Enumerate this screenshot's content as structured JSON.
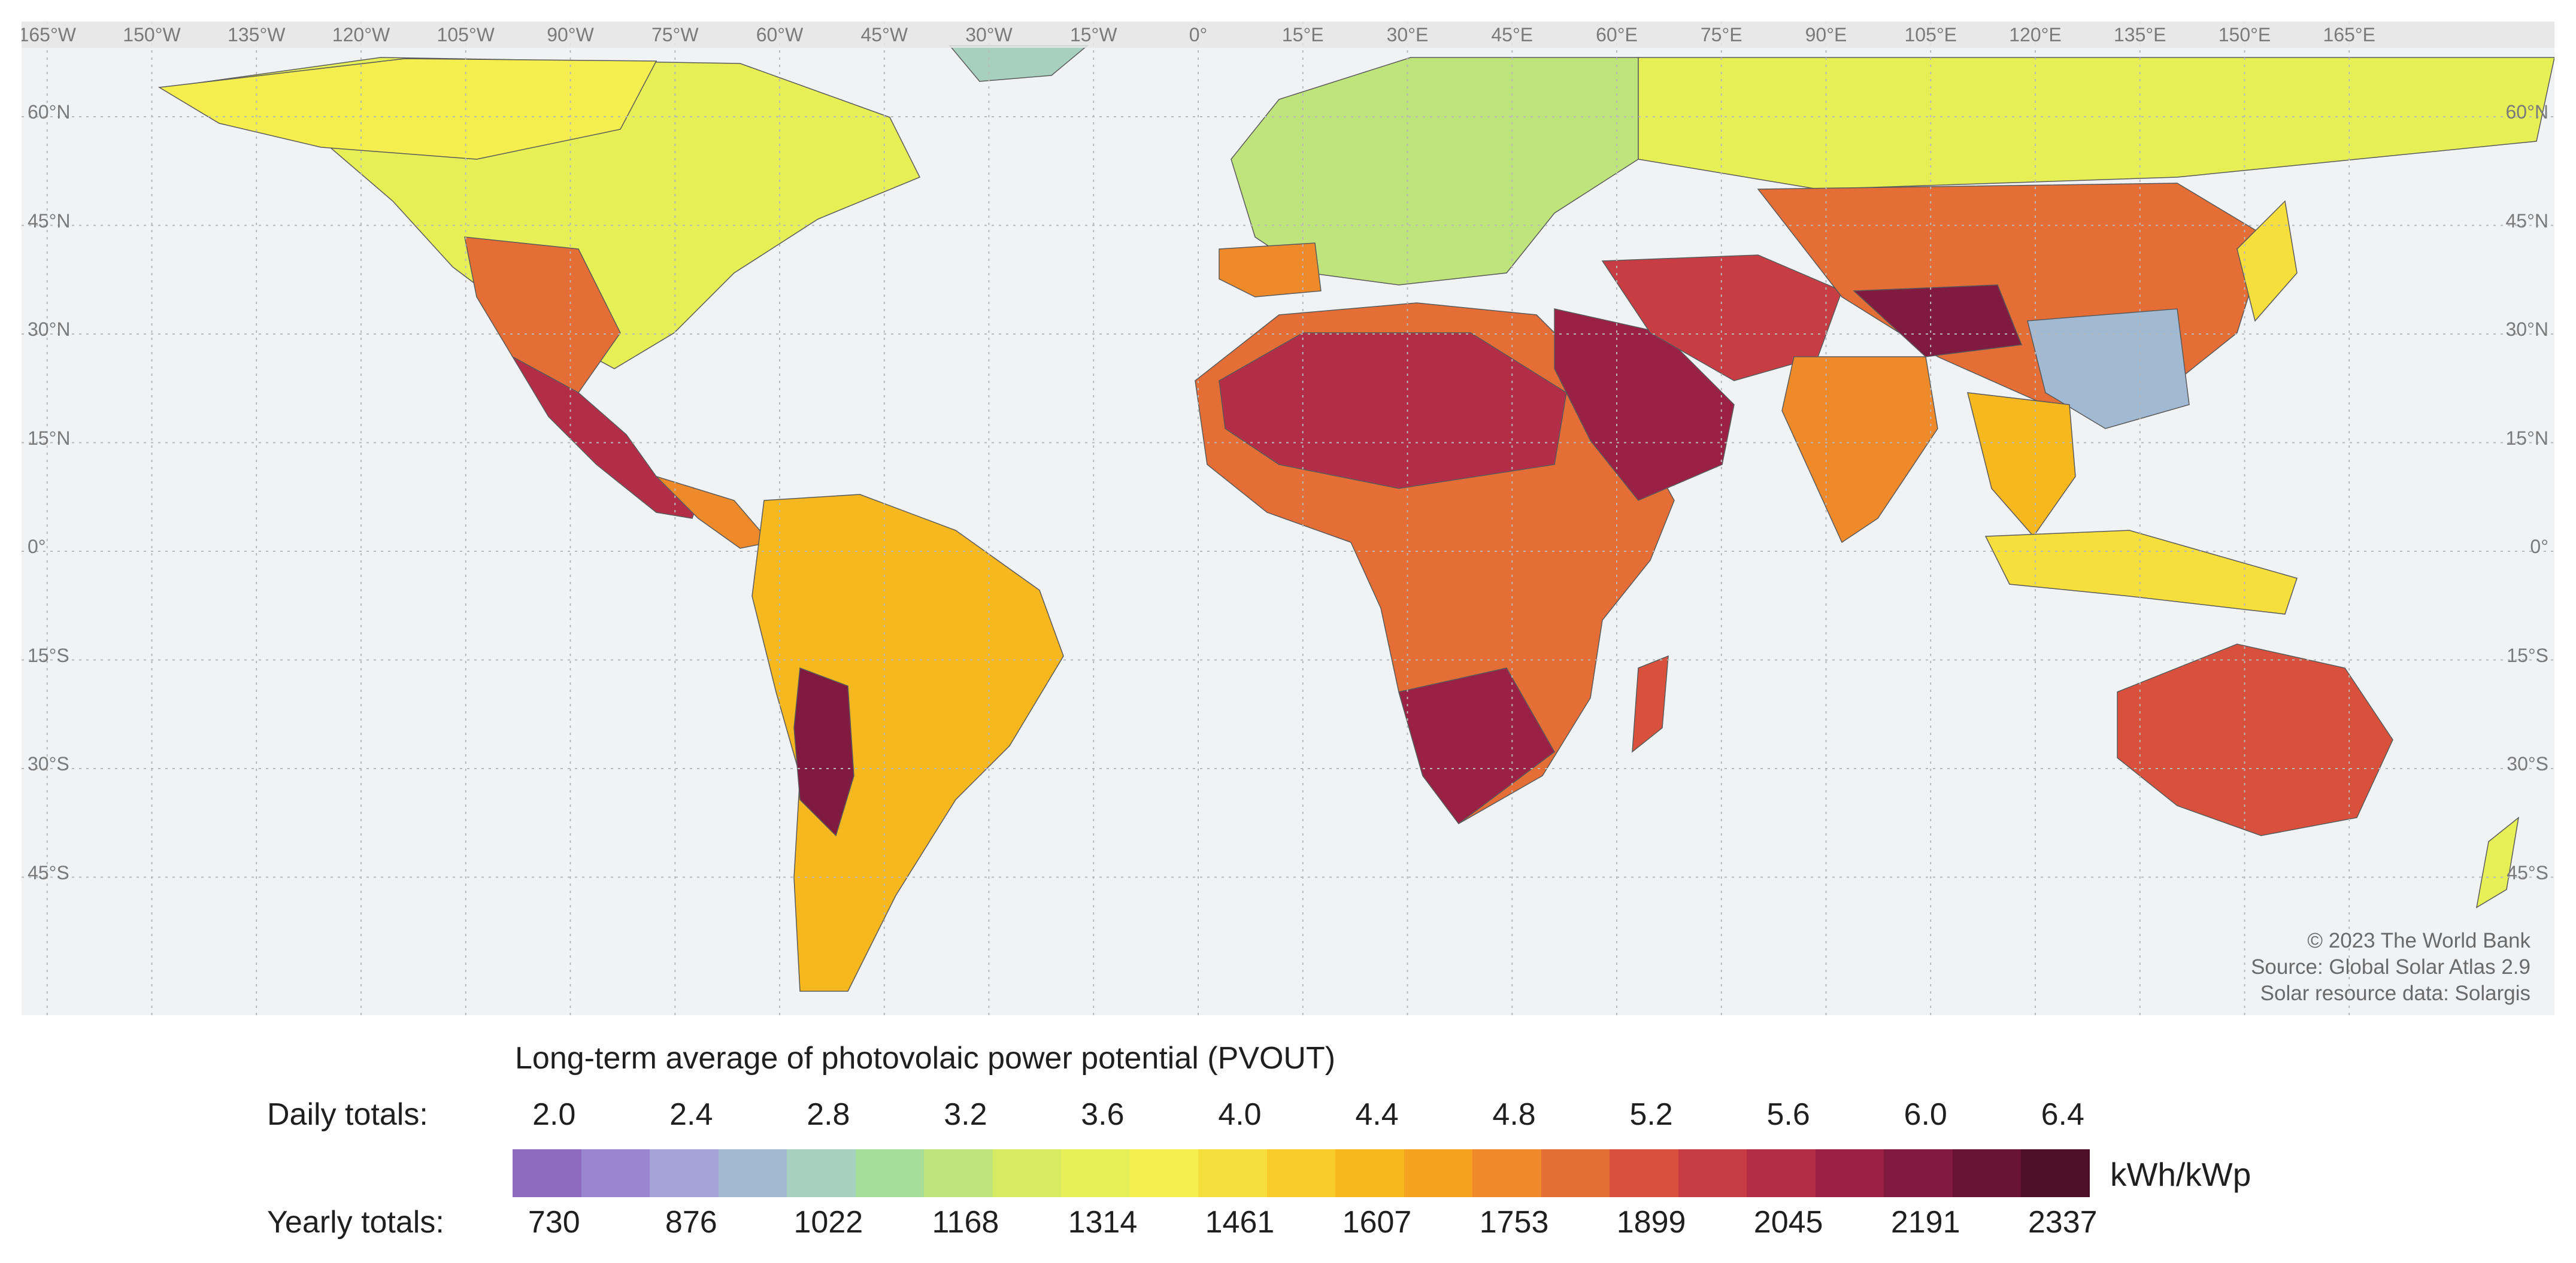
{
  "map": {
    "longitude_labels": [
      "165°W",
      "150°W",
      "135°W",
      "120°W",
      "105°W",
      "90°W",
      "75°W",
      "60°W",
      "45°W",
      "30°W",
      "15°W",
      "0°",
      "15°E",
      "30°E",
      "45°E",
      "60°E",
      "75°E",
      "90°E",
      "105°E",
      "120°E",
      "135°E",
      "150°E",
      "165°E"
    ],
    "latitude_labels": [
      "60°N",
      "45°N",
      "30°N",
      "15°N",
      "0°",
      "15°S",
      "30°S",
      "45°S"
    ],
    "credits": [
      "© 2023 The World Bank",
      "Source: Global Solar Atlas 2.9",
      "Solar resource data: Solargis"
    ],
    "ocean_color": "#f1f2f4"
  },
  "legend": {
    "title": "Long-term average of photovolaic power potential (PVOUT)",
    "daily_label": "Daily totals:",
    "daily_ticks": [
      "2.0",
      "2.4",
      "2.8",
      "3.2",
      "3.6",
      "4.0",
      "4.4",
      "4.8",
      "5.2",
      "5.6",
      "6.0",
      "6.4"
    ],
    "yearly_label": "Yearly totals:",
    "yearly_ticks": [
      "730",
      "876",
      "1022",
      "1168",
      "1314",
      "1461",
      "1607",
      "1753",
      "1899",
      "2045",
      "2191",
      "2337"
    ],
    "unit": "kWh/kWp",
    "colors": [
      "#8e6bbf",
      "#9a86d0",
      "#a3a4d8",
      "#a2b9d4",
      "#a8d0c0",
      "#a6dd9a",
      "#bfe47c",
      "#d6ea62",
      "#e6ef56",
      "#f4ef4e",
      "#f6de3c",
      "#f7cb2a",
      "#f7b71f",
      "#f4a21f",
      "#ef8a2a",
      "#e56d36",
      "#d9503c",
      "#c83c44",
      "#b32d48",
      "#9a2145",
      "#801a3e",
      "#671434",
      "#4d0f28"
    ]
  }
}
